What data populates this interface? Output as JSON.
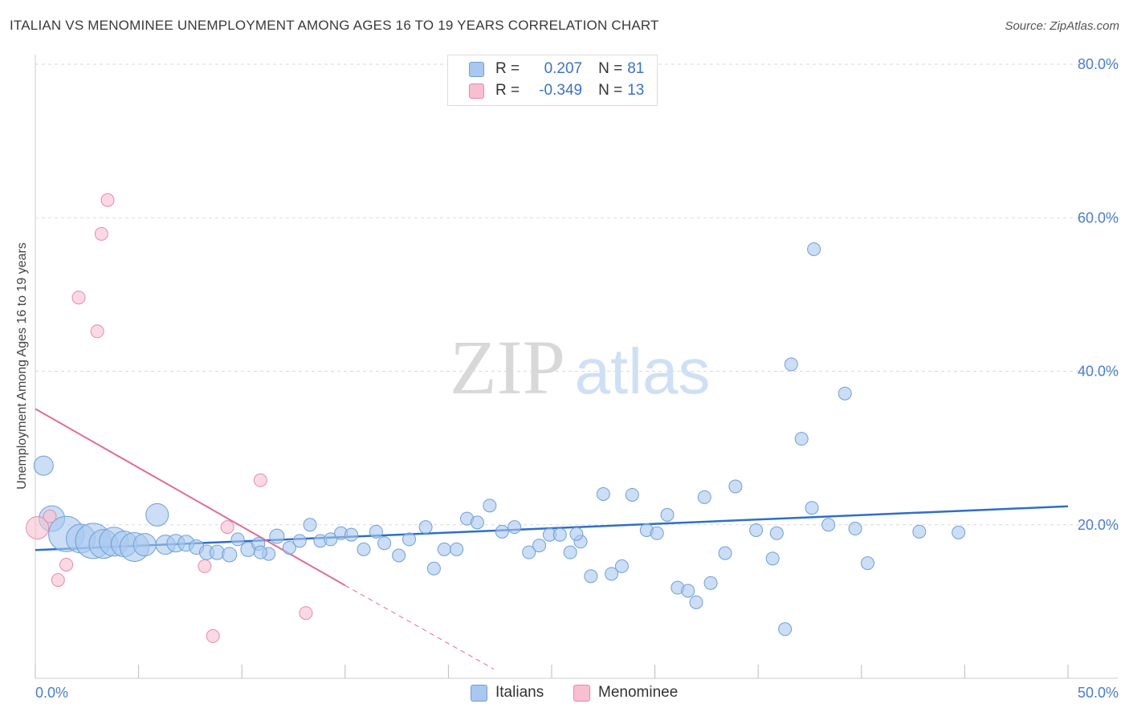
{
  "title": "ITALIAN VS MENOMINEE UNEMPLOYMENT AMONG AGES 16 TO 19 YEARS CORRELATION CHART",
  "source": "Source: ZipAtlas.com",
  "watermark": {
    "zip": "ZIP",
    "atlas": "atlas"
  },
  "legend_top": {
    "italians": {
      "r_label": "R =",
      "r_value": "0.207",
      "n_label": "N =",
      "n_value": "81"
    },
    "menominee": {
      "r_label": "R =",
      "r_value": "-0.349",
      "n_label": "N =",
      "n_value": "13"
    }
  },
  "legend_bottom": {
    "italians": "Italians",
    "menominee": "Menominee"
  },
  "colors": {
    "italians_fill": "#a9c8ef",
    "italians_stroke": "#6f9fd8",
    "italians_line": "#2f6fc7",
    "menominee_fill": "#f7bfd0",
    "menominee_stroke": "#e88aa8",
    "menominee_line": "#e06c97",
    "tick_text": "#4a7ec8",
    "grid": "#d9d9d9"
  },
  "chart_data": {
    "type": "scatter",
    "title": "ITALIAN VS MENOMINEE UNEMPLOYMENT AMONG AGES 16 TO 19 YEARS CORRELATION CHART",
    "xlabel": "",
    "ylabel": "Unemployment Among Ages 16 to 19 years",
    "xlim": [
      0,
      50
    ],
    "ylim": [
      0,
      80
    ],
    "x_tick_labels": [
      "0.0%",
      "50.0%"
    ],
    "y_ticks": [
      20,
      40,
      60,
      80
    ],
    "y_tick_labels": [
      "20.0%",
      "40.0%",
      "60.0%",
      "80.0%"
    ],
    "legend_position": "top-center",
    "series": [
      {
        "name": "Italians",
        "trend": {
          "x": [
            0,
            50
          ],
          "y": [
            16.7,
            22.4
          ]
        },
        "points": [
          {
            "x": 0.4,
            "y": 27.7,
            "s": 12
          },
          {
            "x": 0.8,
            "y": 20.8,
            "s": 16
          },
          {
            "x": 1.5,
            "y": 18.8,
            "s": 22
          },
          {
            "x": 2.2,
            "y": 18.2,
            "s": 18
          },
          {
            "x": 2.8,
            "y": 17.9,
            "s": 22
          },
          {
            "x": 3.3,
            "y": 17.5,
            "s": 18
          },
          {
            "x": 3.8,
            "y": 17.8,
            "s": 18
          },
          {
            "x": 4.3,
            "y": 17.5,
            "s": 16
          },
          {
            "x": 4.8,
            "y": 17.1,
            "s": 18
          },
          {
            "x": 5.3,
            "y": 17.4,
            "s": 14
          },
          {
            "x": 5.9,
            "y": 21.3,
            "s": 14
          },
          {
            "x": 6.3,
            "y": 17.4,
            "s": 12
          },
          {
            "x": 6.8,
            "y": 17.6,
            "s": 11
          },
          {
            "x": 7.3,
            "y": 17.6,
            "s": 10
          },
          {
            "x": 7.8,
            "y": 17.1,
            "s": 9
          },
          {
            "x": 8.3,
            "y": 16.4,
            "s": 9
          },
          {
            "x": 8.8,
            "y": 16.4,
            "s": 9
          },
          {
            "x": 9.4,
            "y": 16.1,
            "s": 9
          },
          {
            "x": 9.8,
            "y": 18.1,
            "s": 8
          },
          {
            "x": 10.3,
            "y": 16.8,
            "s": 9
          },
          {
            "x": 10.8,
            "y": 17.5,
            "s": 8
          },
          {
            "x": 11.3,
            "y": 16.2,
            "s": 8
          },
          {
            "x": 11.7,
            "y": 18.5,
            "s": 9
          },
          {
            "x": 12.3,
            "y": 17.0,
            "s": 8
          },
          {
            "x": 12.8,
            "y": 17.9,
            "s": 8
          },
          {
            "x": 13.3,
            "y": 20.0,
            "s": 8
          },
          {
            "x": 13.8,
            "y": 17.9,
            "s": 8
          },
          {
            "x": 14.3,
            "y": 18.1,
            "s": 8
          },
          {
            "x": 14.8,
            "y": 18.9,
            "s": 8
          },
          {
            "x": 15.3,
            "y": 18.7,
            "s": 8
          },
          {
            "x": 15.9,
            "y": 16.8,
            "s": 8
          },
          {
            "x": 16.5,
            "y": 19.1,
            "s": 8
          },
          {
            "x": 16.9,
            "y": 17.6,
            "s": 8
          },
          {
            "x": 17.6,
            "y": 16.0,
            "s": 8
          },
          {
            "x": 18.1,
            "y": 18.1,
            "s": 8
          },
          {
            "x": 18.9,
            "y": 19.7,
            "s": 8
          },
          {
            "x": 19.3,
            "y": 14.3,
            "s": 8
          },
          {
            "x": 19.8,
            "y": 16.8,
            "s": 8
          },
          {
            "x": 20.4,
            "y": 16.8,
            "s": 8
          },
          {
            "x": 20.9,
            "y": 20.8,
            "s": 8
          },
          {
            "x": 21.4,
            "y": 20.3,
            "s": 8
          },
          {
            "x": 22.0,
            "y": 22.5,
            "s": 8
          },
          {
            "x": 22.6,
            "y": 19.1,
            "s": 8
          },
          {
            "x": 23.2,
            "y": 19.7,
            "s": 8
          },
          {
            "x": 23.9,
            "y": 16.4,
            "s": 8
          },
          {
            "x": 24.4,
            "y": 17.3,
            "s": 8
          },
          {
            "x": 24.9,
            "y": 18.7,
            "s": 8
          },
          {
            "x": 25.4,
            "y": 18.7,
            "s": 8
          },
          {
            "x": 25.9,
            "y": 16.4,
            "s": 8
          },
          {
            "x": 26.4,
            "y": 17.8,
            "s": 8
          },
          {
            "x": 26.9,
            "y": 13.3,
            "s": 8
          },
          {
            "x": 27.5,
            "y": 24.0,
            "s": 8
          },
          {
            "x": 27.9,
            "y": 13.6,
            "s": 8
          },
          {
            "x": 28.4,
            "y": 14.6,
            "s": 8
          },
          {
            "x": 28.9,
            "y": 23.9,
            "s": 8
          },
          {
            "x": 29.6,
            "y": 19.3,
            "s": 8
          },
          {
            "x": 30.1,
            "y": 18.9,
            "s": 8
          },
          {
            "x": 30.6,
            "y": 21.3,
            "s": 8
          },
          {
            "x": 31.1,
            "y": 11.8,
            "s": 8
          },
          {
            "x": 31.6,
            "y": 11.4,
            "s": 8
          },
          {
            "x": 32.4,
            "y": 23.6,
            "s": 8
          },
          {
            "x": 32.0,
            "y": 9.9,
            "s": 8
          },
          {
            "x": 32.7,
            "y": 12.4,
            "s": 8
          },
          {
            "x": 33.4,
            "y": 16.3,
            "s": 8
          },
          {
            "x": 33.9,
            "y": 25.0,
            "s": 8
          },
          {
            "x": 34.9,
            "y": 19.3,
            "s": 8
          },
          {
            "x": 35.7,
            "y": 15.6,
            "s": 8
          },
          {
            "x": 35.9,
            "y": 18.9,
            "s": 8
          },
          {
            "x": 36.3,
            "y": 6.4,
            "s": 8
          },
          {
            "x": 36.6,
            "y": 40.9,
            "s": 8
          },
          {
            "x": 37.1,
            "y": 31.2,
            "s": 8
          },
          {
            "x": 37.6,
            "y": 22.2,
            "s": 8
          },
          {
            "x": 37.7,
            "y": 55.9,
            "s": 8
          },
          {
            "x": 38.4,
            "y": 20.0,
            "s": 8
          },
          {
            "x": 39.2,
            "y": 37.1,
            "s": 8
          },
          {
            "x": 39.7,
            "y": 19.5,
            "s": 8
          },
          {
            "x": 40.3,
            "y": 15.0,
            "s": 8
          },
          {
            "x": 42.8,
            "y": 19.1,
            "s": 8
          },
          {
            "x": 44.7,
            "y": 19.0,
            "s": 8
          },
          {
            "x": 26.2,
            "y": 18.8,
            "s": 8
          },
          {
            "x": 10.9,
            "y": 16.4,
            "s": 8
          }
        ]
      },
      {
        "name": "Menominee",
        "trend": {
          "x": [
            0,
            15
          ],
          "y": [
            35.1,
            12.1
          ]
        },
        "trend_dashed": {
          "x": [
            15,
            22.2
          ],
          "y": [
            12.1,
            1.2
          ]
        },
        "points": [
          {
            "x": 0.1,
            "y": 19.6,
            "s": 14
          },
          {
            "x": 0.7,
            "y": 21.1,
            "s": 8
          },
          {
            "x": 1.1,
            "y": 12.8,
            "s": 8
          },
          {
            "x": 1.5,
            "y": 14.8,
            "s": 8
          },
          {
            "x": 2.1,
            "y": 49.6,
            "s": 8
          },
          {
            "x": 3.0,
            "y": 45.2,
            "s": 8
          },
          {
            "x": 3.2,
            "y": 57.9,
            "s": 8
          },
          {
            "x": 3.5,
            "y": 62.3,
            "s": 8
          },
          {
            "x": 8.2,
            "y": 14.6,
            "s": 8
          },
          {
            "x": 8.6,
            "y": 5.5,
            "s": 8
          },
          {
            "x": 9.3,
            "y": 19.7,
            "s": 8
          },
          {
            "x": 10.9,
            "y": 25.8,
            "s": 8
          },
          {
            "x": 13.1,
            "y": 8.5,
            "s": 8
          }
        ]
      }
    ]
  }
}
